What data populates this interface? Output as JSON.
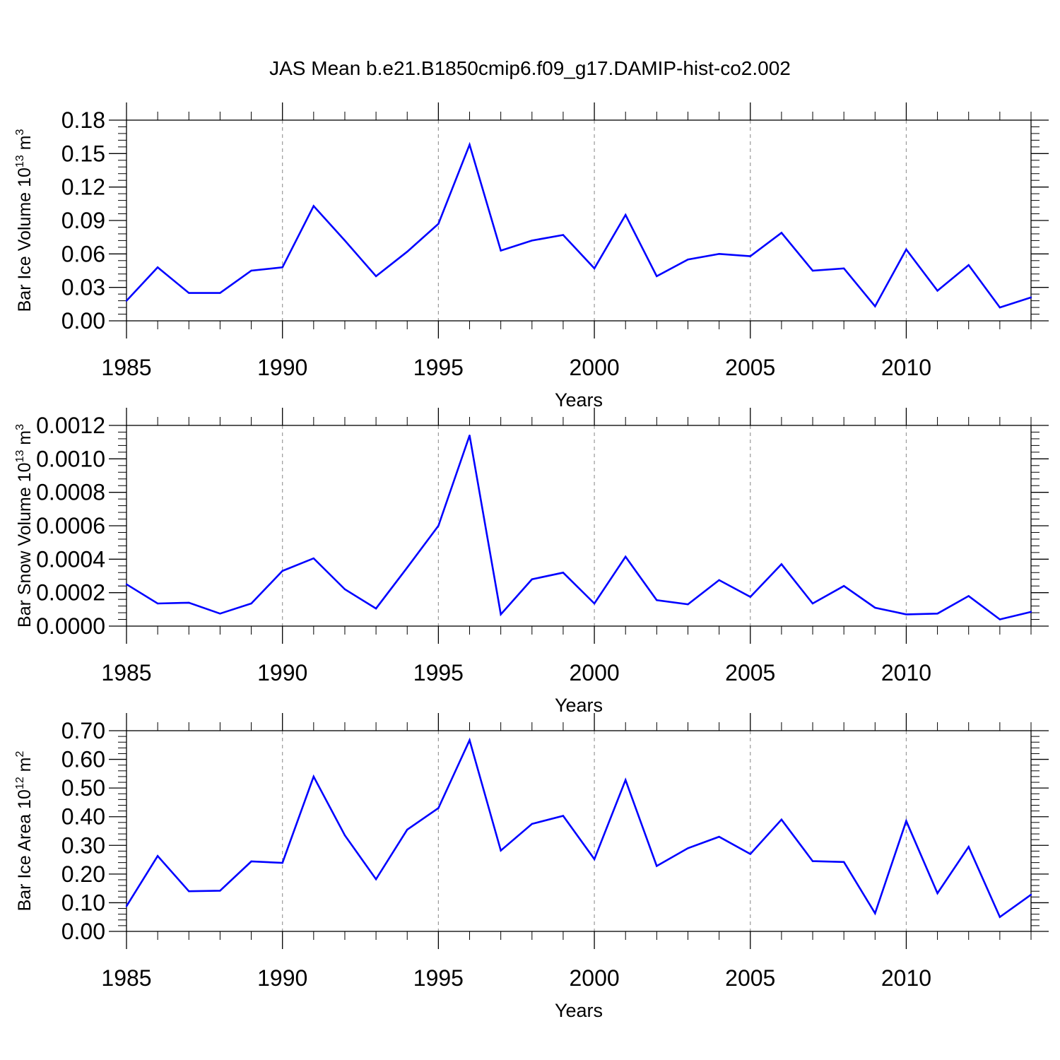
{
  "title": "JAS Mean b.e21.B1850cmip6.f09_g17.DAMIP-hist-co2.002",
  "colors": {
    "line": "#0000ff",
    "axis": "#000000",
    "grid": "#999999"
  },
  "chart_data": [
    {
      "type": "line",
      "ylabel": {
        "base": "Bar Ice Volume 10",
        "exp": "13",
        "unit": " m",
        "unit_exp": "3"
      },
      "xlabel": "Years",
      "ylim": [
        0,
        0.18
      ],
      "yticks": [
        "0.00",
        "0.03",
        "0.06",
        "0.09",
        "0.12",
        "0.15",
        "0.18"
      ],
      "xticks": [
        "1985",
        "1990",
        "1995",
        "2000",
        "2005",
        "2010"
      ],
      "x": [
        1985,
        1986,
        1987,
        1988,
        1989,
        1990,
        1991,
        1992,
        1993,
        1994,
        1995,
        1996,
        1997,
        1998,
        1999,
        2000,
        2001,
        2002,
        2003,
        2004,
        2005,
        2006,
        2007,
        2008,
        2009,
        2010,
        2011,
        2012,
        2013,
        2014
      ],
      "values": [
        0.018,
        0.048,
        0.025,
        0.025,
        0.045,
        0.048,
        0.103,
        0.072,
        0.04,
        0.062,
        0.087,
        0.158,
        0.063,
        0.072,
        0.077,
        0.047,
        0.095,
        0.04,
        0.055,
        0.06,
        0.058,
        0.079,
        0.045,
        0.047,
        0.013,
        0.064,
        0.027,
        0.05,
        0.012,
        0.021
      ]
    },
    {
      "type": "line",
      "ylabel": {
        "base": "Bar Snow Volume 10",
        "exp": "13",
        "unit": " m",
        "unit_exp": "3"
      },
      "xlabel": "Years",
      "ylim": [
        0,
        0.0012
      ],
      "yticks": [
        "0.0000",
        "0.0002",
        "0.0004",
        "0.0006",
        "0.0008",
        "0.0010",
        "0.0012"
      ],
      "xticks": [
        "1985",
        "1990",
        "1995",
        "2000",
        "2005",
        "2010"
      ],
      "x": [
        1985,
        1986,
        1987,
        1988,
        1989,
        1990,
        1991,
        1992,
        1993,
        1994,
        1995,
        1996,
        1997,
        1998,
        1999,
        2000,
        2001,
        2002,
        2003,
        2004,
        2005,
        2006,
        2007,
        2008,
        2009,
        2010,
        2011,
        2012,
        2013,
        2014
      ],
      "values": [
        0.00025,
        0.000135,
        0.00014,
        7.5e-05,
        0.000135,
        0.00033,
        0.000405,
        0.00022,
        0.000105,
        0.00035,
        0.0006,
        0.00114,
        7e-05,
        0.00028,
        0.00032,
        0.000135,
        0.000415,
        0.000155,
        0.00013,
        0.000275,
        0.000175,
        0.00037,
        0.000135,
        0.00024,
        0.00011,
        7e-05,
        7.5e-05,
        0.00018,
        4e-05,
        8.5e-05
      ]
    },
    {
      "type": "line",
      "ylabel": {
        "base": "Bar Ice Area 10",
        "exp": "12",
        "unit": " m",
        "unit_exp": "2"
      },
      "xlabel": "Years",
      "ylim": [
        0,
        0.7
      ],
      "yticks": [
        "0.00",
        "0.10",
        "0.20",
        "0.30",
        "0.40",
        "0.50",
        "0.60",
        "0.70"
      ],
      "xticks": [
        "1985",
        "1990",
        "1995",
        "2000",
        "2005",
        "2010"
      ],
      "x": [
        1985,
        1986,
        1987,
        1988,
        1989,
        1990,
        1991,
        1992,
        1993,
        1994,
        1995,
        1996,
        1997,
        1998,
        1999,
        2000,
        2001,
        2002,
        2003,
        2004,
        2005,
        2006,
        2007,
        2008,
        2009,
        2010,
        2011,
        2012,
        2013,
        2014
      ],
      "values": [
        0.088,
        0.263,
        0.14,
        0.142,
        0.244,
        0.239,
        0.54,
        0.335,
        0.182,
        0.355,
        0.43,
        0.667,
        0.282,
        0.375,
        0.403,
        0.252,
        0.528,
        0.228,
        0.29,
        0.33,
        0.27,
        0.39,
        0.245,
        0.242,
        0.063,
        0.385,
        0.133,
        0.295,
        0.05,
        0.128
      ]
    }
  ]
}
